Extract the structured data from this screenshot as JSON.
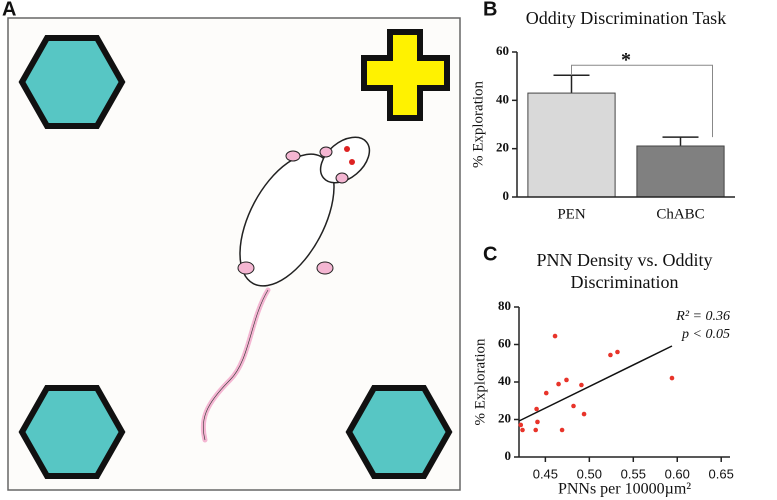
{
  "panel_labels": [
    "A",
    "B",
    "C"
  ],
  "chart_data": [
    {
      "type": "bar",
      "title": "Oddity Discrimination Task",
      "y_label": "% Exploration",
      "categories": [
        "PEN",
        "ChABC"
      ],
      "values": [
        43,
        21.1
      ],
      "errors": [
        7.4,
        3.7
      ],
      "colors": [
        "#d9d9d9",
        "#808080"
      ],
      "ylim": [
        0,
        60
      ],
      "yticks": [
        0,
        20,
        40,
        60
      ],
      "annotations": [
        "*"
      ]
    },
    {
      "type": "scatter",
      "title": [
        "PNN Density vs. Oddity",
        "Discrimination"
      ],
      "x_label": "PNNs per 10000µm²",
      "y_label": "% Exploration",
      "color": "#e8342a",
      "x": [
        0.422,
        0.424,
        0.439,
        0.44,
        0.441,
        0.451,
        0.461,
        0.465,
        0.469,
        0.474,
        0.482,
        0.491,
        0.494,
        0.524,
        0.532,
        0.594
      ],
      "y": [
        17.1,
        14.4,
        14.4,
        25.6,
        18.7,
        34.1,
        64.5,
        38.9,
        14.4,
        41.1,
        27.2,
        38.4,
        22.9,
        54.4,
        56,
        42.1
      ],
      "trendline": {
        "x": [
          0.42,
          0.594
        ],
        "y": [
          19.2,
          59.2
        ]
      },
      "xlim": [
        0.42,
        0.66
      ],
      "ylim": [
        0,
        80
      ],
      "xticks": [
        0.45,
        {
          "value": 0.5,
          "label": "0.50"
        },
        0.55,
        {
          "value": 0.6,
          "label": "0.60"
        },
        0.65
      ],
      "yticks": [
        0,
        20,
        40,
        60,
        80
      ],
      "annotations": [
        "R² = 0.36",
        "p < 0.05"
      ]
    }
  ]
}
